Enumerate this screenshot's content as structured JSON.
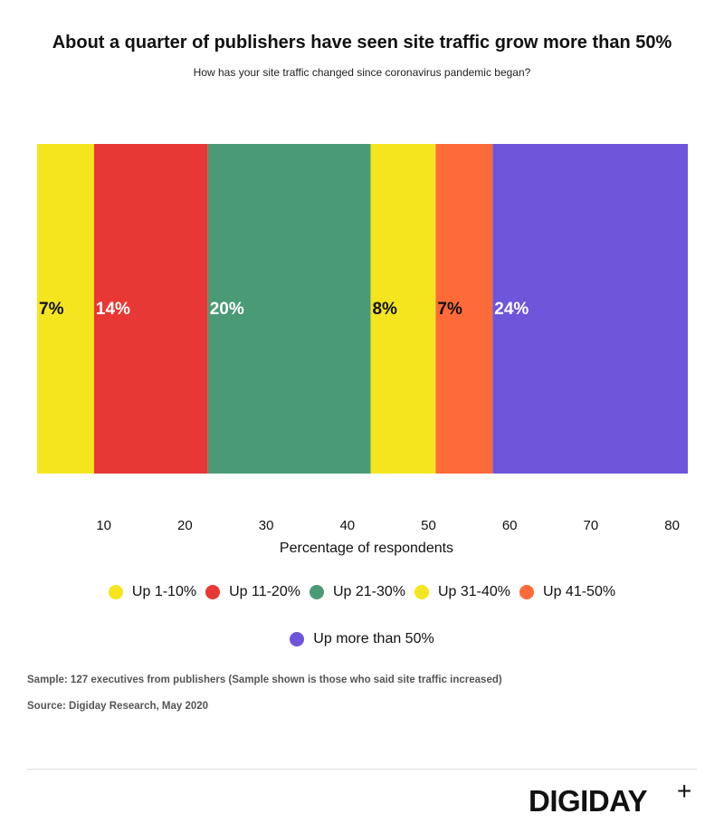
{
  "chart_data": {
    "type": "bar",
    "orientation": "horizontal-stacked",
    "title": "About a quarter of publishers have seen site traffic grow more than 50%",
    "subtitle": "How has your site traffic changed since coronavirus pandemic began?",
    "xlabel": "Percentage of respondents",
    "ylabel": "",
    "xlim": [
      0,
      80
    ],
    "xticks": [
      0,
      10,
      20,
      30,
      40,
      50,
      60,
      70,
      80
    ],
    "series": [
      {
        "name": "Up 1-10%",
        "value": 7,
        "label": "7%",
        "color": "#F5E51E",
        "label_color": "#111111"
      },
      {
        "name": "Up 11-20%",
        "value": 14,
        "label": "14%",
        "color": "#E83835",
        "label_color": "#ffffff"
      },
      {
        "name": "Up 21-30%",
        "value": 20,
        "label": "20%",
        "color": "#4A9A76",
        "label_color": "#ffffff"
      },
      {
        "name": "Up 31-40%",
        "value": 8,
        "label": "8%",
        "color": "#F5E51E",
        "label_color": "#111111"
      },
      {
        "name": "Up 41-50%",
        "value": 7,
        "label": "7%",
        "color": "#FF6A39",
        "label_color": "#111111"
      },
      {
        "name": "Up more than 50%",
        "value": 24,
        "label": "24%",
        "color": "#6E55DA",
        "label_color": "#ffffff"
      }
    ],
    "legend_position": "bottom",
    "grid": false
  },
  "notes": {
    "sample": "Sample: 127 executives from publishers (Sample shown is those who said site traffic increased)",
    "source": "Source: Digiday Research, May 2020"
  },
  "logo": {
    "text": "DIGIDAY",
    "plus": "+"
  }
}
